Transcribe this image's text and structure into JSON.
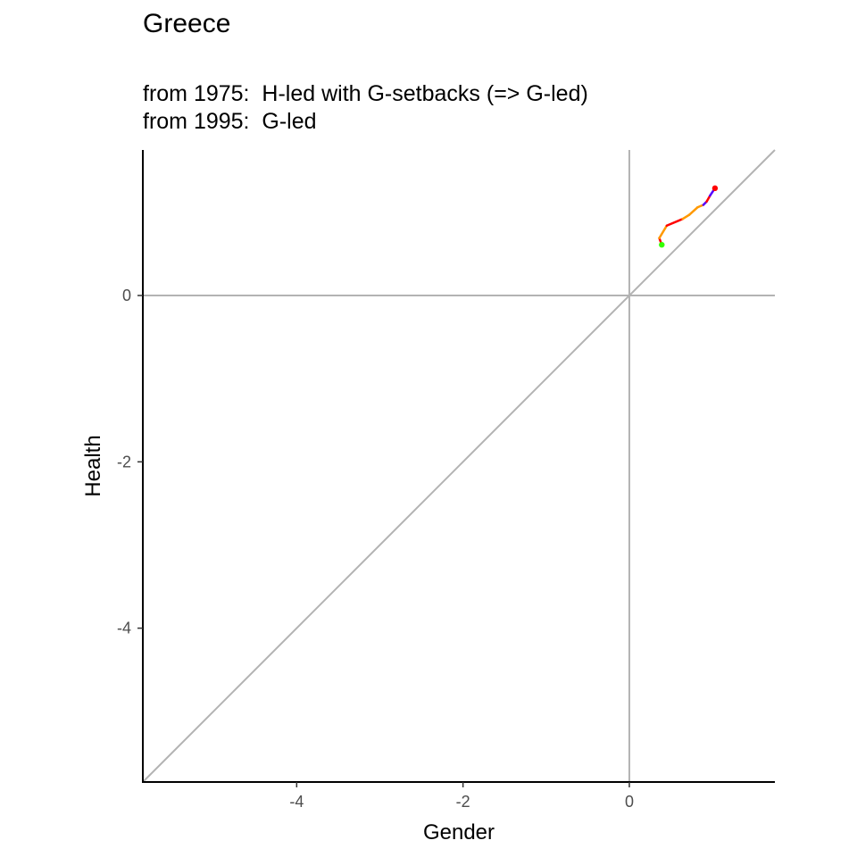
{
  "title": "Greece",
  "subtitle_lines": [
    "from 1975:  H-led with G-setbacks (=> G-led)",
    "from 1995:  G-led"
  ],
  "chart_data": {
    "type": "line",
    "title": "Greece",
    "subtitle": [
      "from 1975:  H-led with G-setbacks (=> G-led)",
      "from 1995:  G-led"
    ],
    "xlabel": "Gender",
    "ylabel": "Health",
    "xlim": [
      -5.85,
      1.75
    ],
    "ylim": [
      -5.85,
      1.75
    ],
    "x_ticks": [
      -4,
      -2,
      0
    ],
    "y_ticks": [
      -4,
      -2,
      0
    ],
    "reference_lines": [
      "x = 0",
      "y = 0",
      "y = x"
    ],
    "grid": false,
    "legend": "none",
    "path": {
      "x": [
        0.39,
        0.36,
        0.45,
        0.64,
        0.72,
        0.82,
        0.89,
        0.93,
        0.97,
        1.03
      ],
      "y": [
        0.61,
        0.69,
        0.84,
        0.92,
        0.97,
        1.06,
        1.09,
        1.13,
        1.2,
        1.29
      ]
    },
    "segment_colors": [
      "#ff0000",
      "#ff9900",
      "#ff0000",
      "#ff9900",
      "#ff9900",
      "#ff9900",
      "#5500ff",
      "#ff0000",
      "#5500ff"
    ],
    "start_point": {
      "x": 0.39,
      "y": 0.61,
      "color": "#33ff00"
    },
    "end_point": {
      "x": 1.03,
      "y": 1.29,
      "color": "#ff0000"
    },
    "colors": {
      "axis": "#000000",
      "reference": "#b3b3b3",
      "tick_label": "#4d4d4d"
    }
  }
}
